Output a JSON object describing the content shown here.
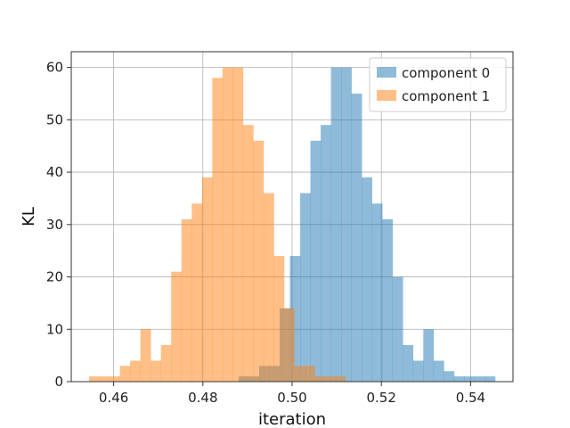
{
  "chart_data": {
    "type": "histogram",
    "title": "",
    "xlabel": "iteration",
    "ylabel": "KL",
    "xlim": [
      0.4505,
      0.5495
    ],
    "ylim": [
      0,
      63
    ],
    "grid": true,
    "legend_position": "top-right",
    "x_ticks": [
      0.46,
      0.48,
      0.5,
      0.52,
      0.54
    ],
    "x_tick_labels": [
      "0.46",
      "0.48",
      "0.50",
      "0.52",
      "0.54"
    ],
    "y_ticks": [
      0,
      10,
      20,
      30,
      40,
      50,
      60
    ],
    "y_tick_labels": [
      "0",
      "10",
      "20",
      "30",
      "40",
      "50",
      "60"
    ],
    "series": [
      {
        "name": "component 0",
        "color": "#1f77b4",
        "alpha": 0.5,
        "bin_edges": [
          0.488,
          0.4903,
          0.4926,
          0.4949,
          0.4972,
          0.4995,
          0.5018,
          0.5041,
          0.5064,
          0.5087,
          0.511,
          0.5133,
          0.5156,
          0.5179,
          0.5202,
          0.5225,
          0.5248,
          0.5271,
          0.5294,
          0.5317,
          0.534,
          0.5363,
          0.5386,
          0.5409,
          0.5432,
          0.5455
        ],
        "counts": [
          1,
          1,
          3,
          3,
          14,
          24,
          36,
          46,
          49,
          60,
          60,
          55,
          39,
          34,
          31,
          20,
          7,
          4,
          10,
          4,
          2,
          1,
          1,
          1,
          1
        ]
      },
      {
        "name": "component 1",
        "color": "#ff7f0e",
        "alpha": 0.5,
        "bin_edges": [
          0.4545,
          0.4568,
          0.4591,
          0.4614,
          0.4637,
          0.466,
          0.4683,
          0.4706,
          0.4729,
          0.4752,
          0.4775,
          0.4798,
          0.4821,
          0.4844,
          0.4867,
          0.489,
          0.4913,
          0.4936,
          0.4959,
          0.4982,
          0.5005,
          0.5028,
          0.5051,
          0.5074,
          0.5097,
          0.512
        ],
        "counts": [
          1,
          1,
          1,
          3,
          4,
          10,
          4,
          7,
          21,
          31,
          34,
          39,
          58,
          60,
          60,
          49,
          46,
          36,
          24,
          14,
          3,
          3,
          1,
          1,
          1
        ]
      }
    ]
  }
}
